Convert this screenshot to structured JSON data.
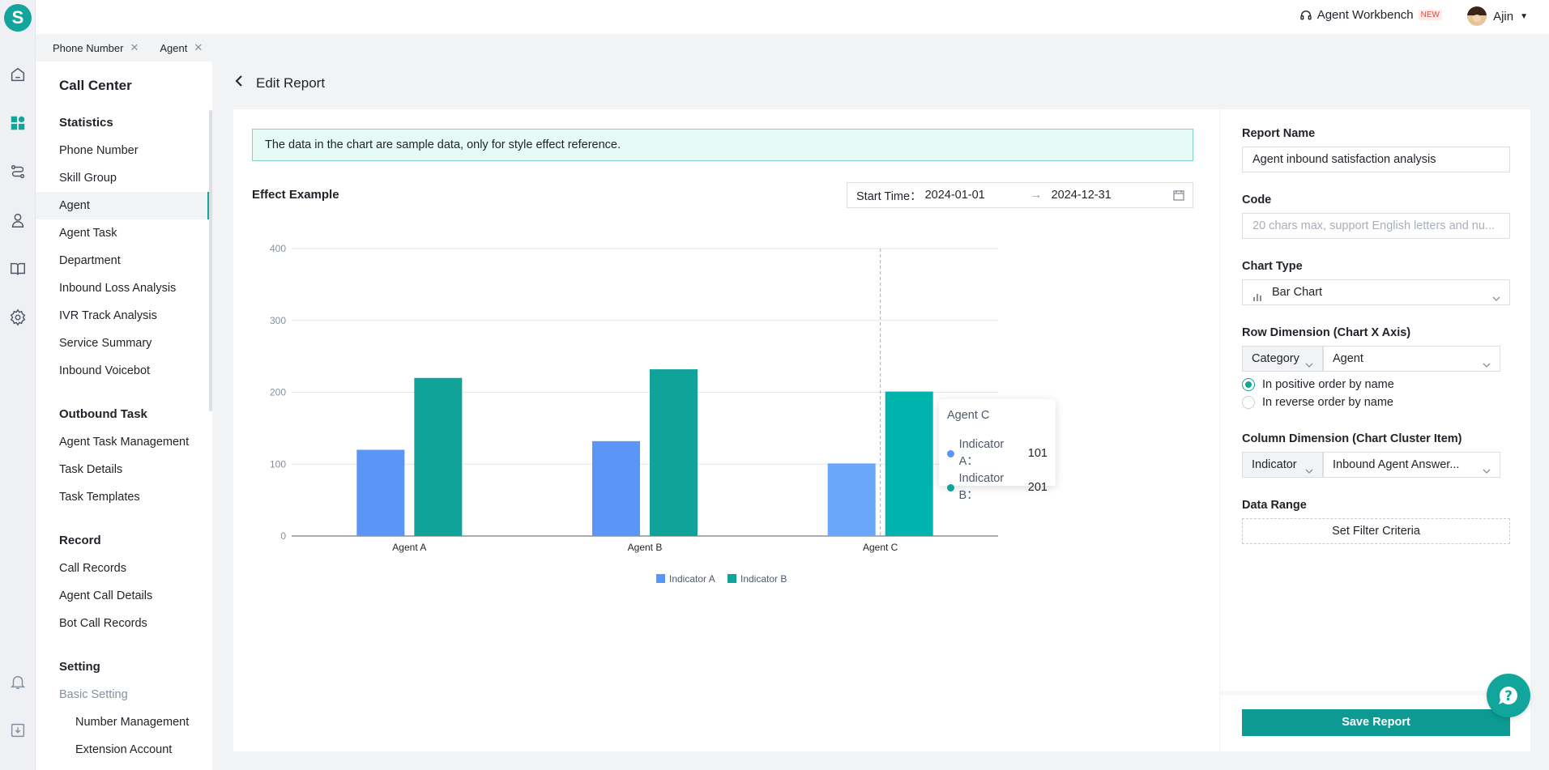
{
  "tabs": [
    {
      "label": "Phone Number"
    },
    {
      "label": "Agent"
    }
  ],
  "header": {
    "workbench_label": "Agent Workbench",
    "workbench_badge": "NEW",
    "user_name": "Ajin"
  },
  "sidebar": {
    "title": "Call Center",
    "groups": {
      "statistics": "Statistics",
      "outbound": "Outbound Task",
      "record": "Record",
      "setting": "Setting"
    },
    "statistics_items": [
      "Phone Number",
      "Skill Group",
      "Agent",
      "Agent Task",
      "Department",
      "Inbound Loss Analysis",
      "IVR Track Analysis",
      "Service Summary",
      "Inbound Voicebot"
    ],
    "outbound_items": [
      "Agent Task Management",
      "Task Details",
      "Task Templates"
    ],
    "record_items": [
      "Call Records",
      "Agent Call Details",
      "Bot Call Records"
    ],
    "setting_items": [
      "Basic Setting",
      "Number Management",
      "Extension Account"
    ],
    "active": "Agent"
  },
  "page": {
    "title": "Edit Report",
    "notice": "The data in the chart are sample data, only for style effect reference.",
    "effect_title": "Effect Example",
    "date_label": "Start Time：",
    "date_start": "2024-01-01",
    "date_end": "2024-12-31"
  },
  "chart_data": {
    "type": "bar",
    "categories": [
      "Agent A",
      "Agent B",
      "Agent C"
    ],
    "series": [
      {
        "name": "Indicator A",
        "values": [
          120,
          132,
          101
        ],
        "color": "#5b96f7"
      },
      {
        "name": "Indicator B",
        "values": [
          220,
          232,
          201
        ],
        "color": "#0fa39a"
      }
    ],
    "ylim": [
      0,
      400
    ],
    "yticks": [
      "0",
      "100",
      "200",
      "300",
      "400"
    ],
    "grid": true,
    "legend": "bottom-center",
    "tooltip": {
      "title": "Agent C",
      "rows": [
        {
          "label": "Indicator A：",
          "value": "101"
        },
        {
          "label": "Indicator B：",
          "value": "201"
        }
      ]
    }
  },
  "panel": {
    "report_name_label": "Report Name",
    "report_name_value": "Agent inbound satisfaction analysis",
    "code_label": "Code",
    "code_placeholder": "20 chars max, support English letters and nu...",
    "chart_type_label": "Chart Type",
    "chart_type_value": "Bar Chart",
    "row_dim_label": "Row Dimension (Chart X Axis)",
    "row_dim_type": "Category",
    "row_dim_value": "Agent",
    "order_positive": "In positive order by name",
    "order_reverse": "In reverse order by name",
    "col_dim_label": "Column Dimension (Chart Cluster Item)",
    "col_dim_type": "Indicator",
    "col_dim_value": "Inbound Agent Answer...",
    "data_range_label": "Data Range",
    "filter_button": "Set Filter Criteria",
    "save_button": "Save Report"
  },
  "colors": {
    "accent": "#12a59c",
    "bar_a": "#5b96f7",
    "bar_b": "#0fa39a"
  }
}
